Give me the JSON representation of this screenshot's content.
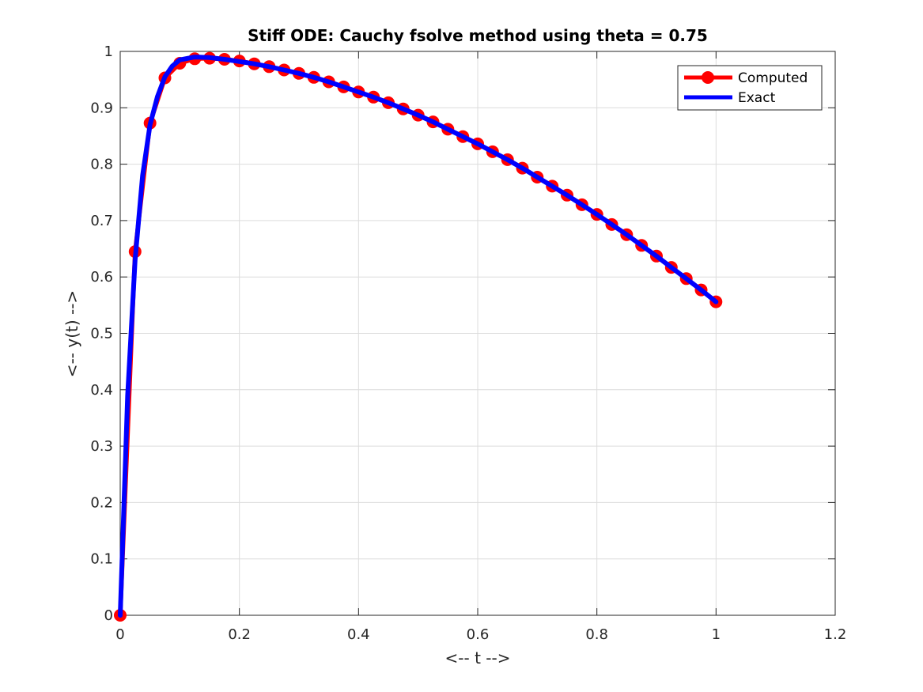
{
  "chart_data": {
    "type": "line",
    "title": "Stiff ODE: Cauchy fsolve method using theta = 0.75",
    "xlabel": "<-- t -->",
    "ylabel": "<-- y(t) -->",
    "xlim": [
      0,
      1.2
    ],
    "ylim": [
      0,
      1
    ],
    "xticks": [
      0,
      0.2,
      0.4,
      0.6,
      0.8,
      1,
      1.2
    ],
    "xtick_labels": [
      "0",
      "0.2",
      "0.4",
      "0.6",
      "0.8",
      "1",
      "1.2"
    ],
    "yticks": [
      0,
      0.1,
      0.2,
      0.3,
      0.4,
      0.5,
      0.6,
      0.7,
      0.8,
      0.9,
      1
    ],
    "ytick_labels": [
      "0",
      "0.1",
      "0.2",
      "0.3",
      "0.4",
      "0.5",
      "0.6",
      "0.7",
      "0.8",
      "0.9",
      "1"
    ],
    "grid": true,
    "legend_position": "top-right",
    "series": [
      {
        "name": "Computed",
        "color": "#ff0000",
        "marker": "circle",
        "x": [
          0,
          0.025,
          0.05,
          0.075,
          0.1,
          0.125,
          0.15,
          0.175,
          0.2,
          0.225,
          0.25,
          0.275,
          0.3,
          0.325,
          0.35,
          0.375,
          0.4,
          0.425,
          0.45,
          0.475,
          0.5,
          0.525,
          0.55,
          0.575,
          0.6,
          0.625,
          0.65,
          0.675,
          0.7,
          0.725,
          0.75,
          0.775,
          0.8,
          0.825,
          0.85,
          0.875,
          0.9,
          0.925,
          0.95,
          0.975,
          1
        ],
        "y": [
          0,
          0.645,
          0.873,
          0.953,
          0.979,
          0.987,
          0.988,
          0.986,
          0.983,
          0.978,
          0.973,
          0.967,
          0.961,
          0.954,
          0.946,
          0.937,
          0.928,
          0.919,
          0.909,
          0.898,
          0.887,
          0.875,
          0.862,
          0.849,
          0.836,
          0.822,
          0.808,
          0.793,
          0.777,
          0.761,
          0.745,
          0.728,
          0.711,
          0.693,
          0.675,
          0.656,
          0.637,
          0.617,
          0.597,
          0.577,
          0.556
        ]
      },
      {
        "name": "Exact",
        "color": "#0000ff",
        "marker": "none",
        "x": [
          0,
          0.0125,
          0.025,
          0.0375,
          0.05,
          0.0625,
          0.075,
          0.0875,
          0.1,
          0.125,
          0.15,
          0.175,
          0.2,
          0.225,
          0.25,
          0.275,
          0.3,
          0.325,
          0.35,
          0.375,
          0.4,
          0.425,
          0.45,
          0.475,
          0.5,
          0.525,
          0.55,
          0.575,
          0.6,
          0.625,
          0.65,
          0.675,
          0.7,
          0.725,
          0.75,
          0.775,
          0.8,
          0.825,
          0.85,
          0.875,
          0.9,
          0.925,
          0.95,
          0.975,
          1
        ],
        "y": [
          0,
          0.39,
          0.63,
          0.78,
          0.87,
          0.92,
          0.955,
          0.974,
          0.985,
          0.99,
          0.989,
          0.986,
          0.982,
          0.978,
          0.973,
          0.967,
          0.961,
          0.954,
          0.946,
          0.937,
          0.928,
          0.919,
          0.909,
          0.898,
          0.887,
          0.875,
          0.862,
          0.849,
          0.836,
          0.822,
          0.808,
          0.793,
          0.777,
          0.761,
          0.745,
          0.728,
          0.711,
          0.693,
          0.675,
          0.656,
          0.637,
          0.617,
          0.597,
          0.577,
          0.556
        ]
      }
    ]
  }
}
